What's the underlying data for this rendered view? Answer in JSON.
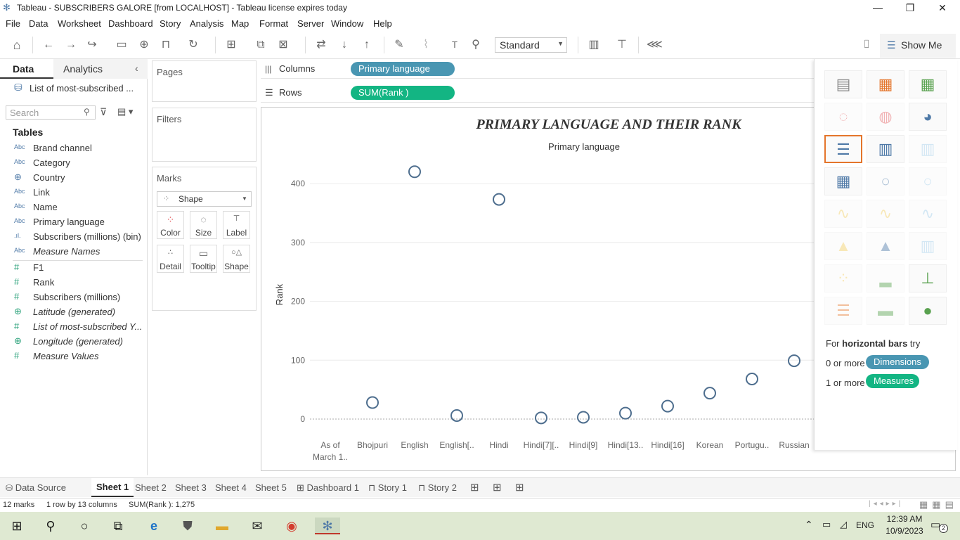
{
  "window": {
    "title": "Tableau - SUBSCRIBERS GALORE [from LOCALHOST] - Tableau license expires today"
  },
  "menu": [
    "File",
    "Data",
    "Worksheet",
    "Dashboard",
    "Story",
    "Analysis",
    "Map",
    "Format",
    "Server",
    "Window",
    "Help"
  ],
  "toolbar": {
    "fit_select": "Standard",
    "show_me": "Show Me"
  },
  "left": {
    "tab_data": "Data",
    "tab_analytics": "Analytics",
    "datasource": "List of most-subscribed ...",
    "search_placeholder": "Search",
    "tables_heading": "Tables",
    "fields": [
      {
        "icon": "Abc",
        "name": "Brand channel"
      },
      {
        "icon": "Abc",
        "name": "Category"
      },
      {
        "icon": "⊕",
        "name": "Country"
      },
      {
        "icon": "Abc",
        "name": "Link"
      },
      {
        "icon": "Abc",
        "name": "Name"
      },
      {
        "icon": "Abc",
        "name": "Primary language"
      },
      {
        "icon": ".ıl.",
        "name": "Subscribers (millions) (bin)"
      },
      {
        "icon": "Abc",
        "name": "Measure Names"
      },
      {
        "icon": "#",
        "name": "F1"
      },
      {
        "icon": "#",
        "name": "Rank"
      },
      {
        "icon": "#",
        "name": "Subscribers (millions)"
      },
      {
        "icon": "⊕",
        "name": "Latitude (generated)"
      },
      {
        "icon": "#",
        "name": "List of most-subscribed Y..."
      },
      {
        "icon": "⊕",
        "name": "Longitude (generated)"
      },
      {
        "icon": "#",
        "name": "Measure Values"
      }
    ]
  },
  "cards": {
    "pages": "Pages",
    "filters": "Filters",
    "marks": "Marks",
    "mark_type": "Shape",
    "mark_buttons": [
      "Color",
      "Size",
      "Label",
      "Detail",
      "Tooltip",
      "Shape"
    ]
  },
  "shelves": {
    "columns_label": "Columns",
    "rows_label": "Rows",
    "columns_pill": "Primary language",
    "rows_pill": "SUM(Rank )"
  },
  "chart_data": {
    "type": "scatter",
    "title": "PRIMARY LANGUAGE AND THEIR RANK",
    "header": "Primary language",
    "ylabel": "Rank",
    "ylim": [
      -30,
      450
    ],
    "yticks": [
      0,
      100,
      200,
      300,
      400
    ],
    "categories": [
      "As of March 1..",
      "Bhojpuri",
      "English",
      "English[..",
      "Hindi",
      "Hindi[7][..",
      "Hindi[9]",
      "Hindi[13..",
      "Hindi[16]",
      "Korean",
      "Portugu..",
      "Russian"
    ],
    "values": [
      null,
      28,
      420,
      6,
      373,
      2,
      3,
      10,
      22,
      44,
      68,
      99
    ]
  },
  "showme": {
    "hint_prefix": "For ",
    "hint_bold": "horizontal bars",
    "hint_suffix": " try",
    "dim_count": "0 or more",
    "dim_pill": "Dimensions",
    "meas_count": "1 or more",
    "meas_pill": "Measures"
  },
  "sheets": {
    "datasource": "Data Source",
    "tabs": [
      "Sheet 1",
      "Sheet 2",
      "Sheet 3",
      "Sheet 4",
      "Sheet 5",
      "Dashboard 1",
      "Story 1",
      "Story 2"
    ]
  },
  "status": {
    "marks": "12 marks",
    "rows_cols": "1 row by 13 columns",
    "sum": "SUM(Rank ): 1,275"
  },
  "taskbar": {
    "time": "12:39 AM",
    "date": "10/9/2023",
    "lang": "ENG",
    "notif": "2"
  },
  "colors": {
    "pill_dim": "#4996b2",
    "pill_meas": "#13b583",
    "mark": "#4e6e8e",
    "selected_thumb": "#e4752b"
  }
}
